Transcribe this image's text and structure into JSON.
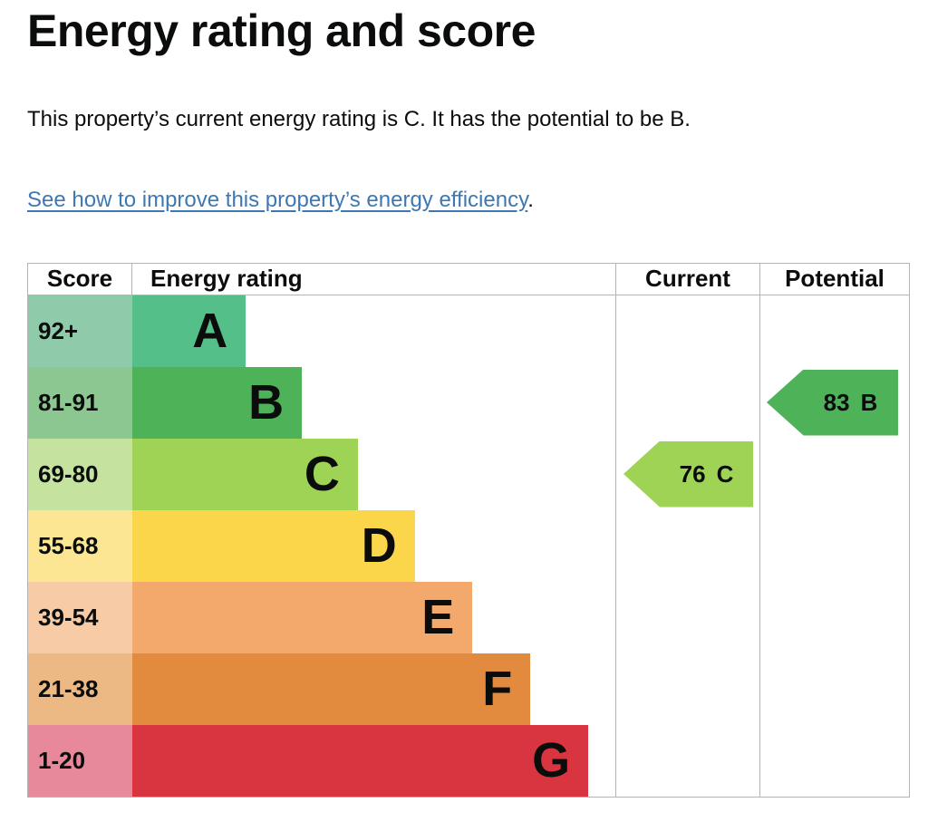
{
  "page": {
    "title": "Energy rating and score",
    "intro": "This property’s current energy rating is C. It has the potential to be B.",
    "link_text": "See how to improve this property’s energy efficiency",
    "link_suffix": "."
  },
  "table": {
    "headers": {
      "score": "Score",
      "rating": "Energy rating",
      "current": "Current",
      "potential": "Potential"
    }
  },
  "chart_data": {
    "type": "bar",
    "title": "Energy rating and score",
    "description": "EPC energy efficiency rating bands with current and potential scores",
    "bands": [
      {
        "letter": "A",
        "score_range": "92+",
        "color": "#54bf88",
        "tint": "#8fcbaa",
        "width_pct": 23.5
      },
      {
        "letter": "B",
        "score_range": "81-91",
        "color": "#4eb258",
        "tint": "#8cc690",
        "width_pct": 35.1
      },
      {
        "letter": "C",
        "score_range": "69-80",
        "color": "#9ed355",
        "tint": "#c5e29e",
        "width_pct": 46.7
      },
      {
        "letter": "D",
        "score_range": "55-68",
        "color": "#fbd64b",
        "tint": "#fce694",
        "width_pct": 58.5
      },
      {
        "letter": "E",
        "score_range": "39-54",
        "color": "#f3a96c",
        "tint": "#f7cba6",
        "width_pct": 70.4
      },
      {
        "letter": "F",
        "score_range": "21-38",
        "color": "#e28a3e",
        "tint": "#ecb883",
        "width_pct": 82.4
      },
      {
        "letter": "G",
        "score_range": "1-20",
        "color": "#d93540",
        "tint": "#e7899a",
        "width_pct": 94.4
      }
    ],
    "current": {
      "label": "Current",
      "score": 76,
      "band": "C",
      "band_index": 2,
      "color": "#9ed355"
    },
    "potential": {
      "label": "Potential",
      "score": 83,
      "band": "B",
      "band_index": 1,
      "color": "#4eb258"
    },
    "layout": {
      "border_color": "#b1b4b6",
      "link_color": "#3e78b2",
      "legend": "none",
      "grid": "off"
    }
  }
}
